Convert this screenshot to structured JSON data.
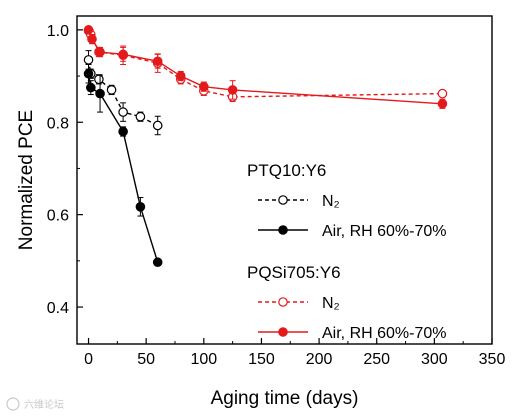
{
  "chart_data": {
    "type": "line",
    "xlabel": "Aging time (days)",
    "ylabel": "Normalized PCE",
    "xlim": [
      -10,
      350
    ],
    "ylim": [
      0.32,
      1.03
    ],
    "xticks": [
      0,
      50,
      100,
      150,
      200,
      250,
      300,
      350
    ],
    "yticks": [
      0.4,
      0.6,
      0.8,
      1.0
    ],
    "ytick_labels": [
      "0.4",
      "0.6",
      "0.8",
      "1.0"
    ],
    "grid": false,
    "legend_position": "right",
    "legend_groups": [
      {
        "title": "PTQ10:Y6",
        "series": [
          0,
          1
        ]
      },
      {
        "title": "PQSi705:Y6",
        "series": [
          2,
          3
        ]
      }
    ],
    "series": [
      {
        "name": "N₂",
        "color": "#000000",
        "line_style": "dashed",
        "marker": "open-circle",
        "x": [
          0,
          2,
          9,
          20,
          30,
          45,
          60
        ],
        "y": [
          0.935,
          0.905,
          0.893,
          0.87,
          0.822,
          0.812,
          0.793
        ],
        "err": [
          0.02,
          0.01,
          0.01,
          0.01,
          0.02,
          0.01,
          0.02
        ]
      },
      {
        "name": "Air, RH 60%-70%",
        "color": "#000000",
        "line_style": "solid",
        "marker": "filled-circle",
        "x": [
          0,
          2,
          10,
          30,
          45,
          60
        ],
        "y": [
          0.905,
          0.875,
          0.862,
          0.78,
          0.617,
          0.497
        ],
        "err": [
          0.02,
          0.015,
          0.04,
          0.01,
          0.02,
          0.005
        ]
      },
      {
        "name": "N₂",
        "color": "#e31a1c",
        "line_style": "dashed",
        "marker": "open-circle",
        "x": [
          0,
          2,
          9,
          30,
          60,
          80,
          100,
          125,
          307
        ],
        "y": [
          0.998,
          0.99,
          0.952,
          0.945,
          0.928,
          0.893,
          0.868,
          0.855,
          0.862
        ],
        "err": [
          0.005,
          0.01,
          0.01,
          0.02,
          0.02,
          0.01,
          0.01,
          0.01,
          0.005
        ]
      },
      {
        "name": "Air, RH 60%-70%",
        "color": "#e31a1c",
        "line_style": "solid",
        "marker": "filled-circle",
        "x": [
          0,
          3,
          10,
          30,
          60,
          80,
          100,
          125,
          307
        ],
        "y": [
          1.0,
          0.98,
          0.952,
          0.947,
          0.932,
          0.9,
          0.877,
          0.87,
          0.84
        ],
        "err": [
          0.005,
          0.01,
          0.01,
          0.015,
          0.015,
          0.01,
          0.01,
          0.02,
          0.01
        ]
      }
    ]
  },
  "watermark": {
    "text": "六维论坛"
  }
}
